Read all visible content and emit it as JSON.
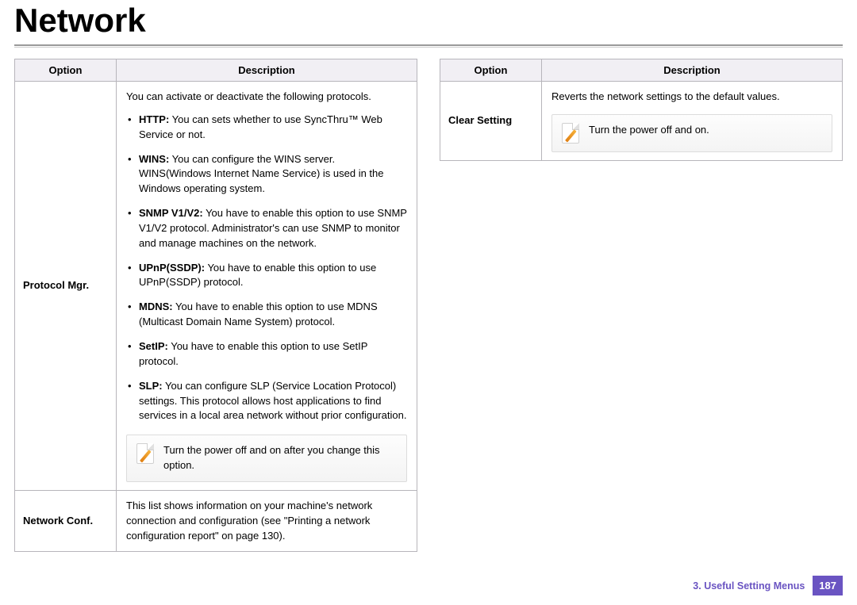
{
  "title": "Network",
  "table_headers": {
    "option": "Option",
    "description": "Description"
  },
  "left": {
    "rows": [
      {
        "option": "Protocol Mgr.",
        "intro": "You can activate or deactivate the following protocols.",
        "items": [
          {
            "name": "HTTP:",
            "text": "  You can sets whether to use SyncThru™ Web Service or not."
          },
          {
            "name": "WINS:",
            "text": "  You can configure the WINS server. WINS(Windows Internet Name Service) is used in the Windows operating system."
          },
          {
            "name": "SNMP V1/V2:",
            "text": " You have to enable this option to use SNMP V1/V2 protocol. Administrator's can use SNMP to monitor and manage machines on the network."
          },
          {
            "name": "UPnP(SSDP):",
            "text": " You have to enable this option to use UPnP(SSDP) protocol."
          },
          {
            "name": "MDNS:",
            "text": " You have to enable this option to use MDNS (Multicast Domain Name System) protocol."
          },
          {
            "name": "SetIP:",
            "text": " You have to enable this option to use SetIP protocol."
          },
          {
            "name": "SLP:",
            "text": " You can configure SLP (Service Location Protocol) settings. This protocol allows host applications to find services in a local area network without prior configuration."
          }
        ],
        "note": "Turn the power off and on after you change this option."
      },
      {
        "option": "Network Conf.",
        "text": "This list shows information on your machine's network connection and configuration (see \"Printing a network configuration report\" on page 130)."
      }
    ]
  },
  "right": {
    "rows": [
      {
        "option": "Clear Setting",
        "text": "Reverts the network settings to the default values.",
        "note": "Turn the power off and on."
      }
    ]
  },
  "footer": {
    "chapter": "3.  Useful Setting Menus",
    "page": "187"
  },
  "colors": {
    "accent": "#6a54c2",
    "header_bg": "#f1eff4",
    "border": "#b7b5bb",
    "note_bg_top": "#fdfdfd",
    "note_bg_bottom": "#f4f4f4"
  }
}
